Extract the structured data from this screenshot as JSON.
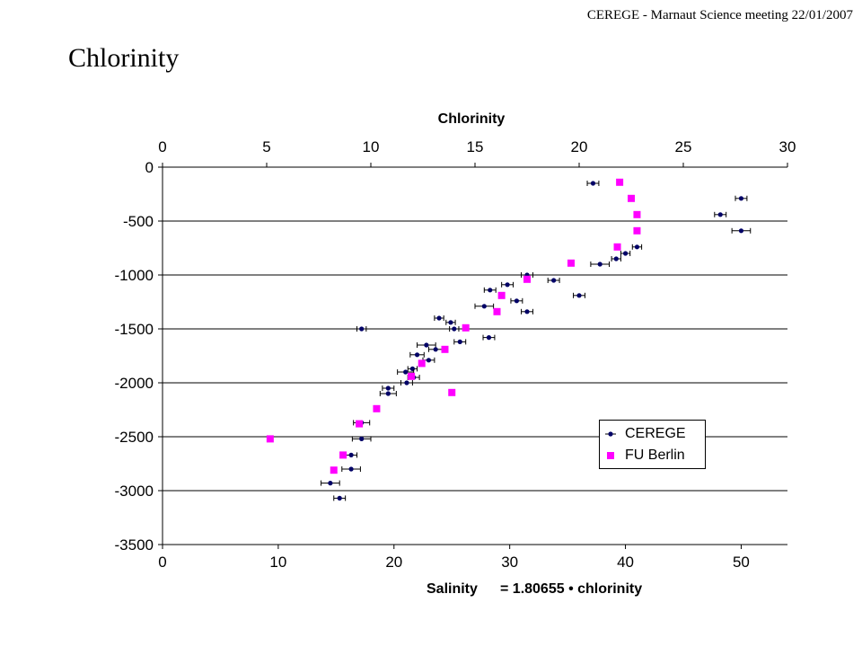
{
  "header": {
    "meeting": "CEREGE - Marnaut Science meeting 22/01/2007"
  },
  "slide": {
    "title": "Chlorinity"
  },
  "chart_data": {
    "type": "scatter",
    "title": "Chlorinity",
    "x2label": "Chlorinity",
    "xlabel": "Salinity",
    "xlabel_formula": "= 1.80655 • chlorinity",
    "ylabel": "",
    "xlim": [
      0,
      54
    ],
    "ylim": [
      -3500,
      0
    ],
    "x_ticks": [
      0,
      10,
      20,
      30,
      40,
      50
    ],
    "x_tick_labels": [
      "0",
      "10",
      "20",
      "30",
      "40",
      "50"
    ],
    "x2lim": [
      0,
      30
    ],
    "x2_ticks": [
      0,
      5,
      10,
      15,
      20,
      25,
      30
    ],
    "x2_tick_labels": [
      "0",
      "5",
      "10",
      "15",
      "20",
      "25",
      "30"
    ],
    "y_ticks": [
      0,
      -500,
      -1000,
      -1500,
      -2000,
      -2500,
      -3000,
      -3500
    ],
    "y_tick_labels": [
      "0",
      "-500",
      "-1000",
      "-1500",
      "-2000",
      "-2500",
      "-3000",
      "-3500"
    ],
    "grid": "horizontal",
    "legend_position": "bottom-right",
    "series": [
      {
        "name": "CEREGE",
        "color": "#000066",
        "marker": "dot-with-horizontal-error-bar",
        "points": [
          {
            "x": 37.2,
            "y": -150,
            "err": 0.5
          },
          {
            "x": 50.0,
            "y": -290,
            "err": 0.5
          },
          {
            "x": 48.2,
            "y": -440,
            "err": 0.5
          },
          {
            "x": 50.0,
            "y": -590,
            "err": 0.8
          },
          {
            "x": 41.0,
            "y": -740,
            "err": 0.4
          },
          {
            "x": 40.0,
            "y": -800,
            "err": 0.4
          },
          {
            "x": 39.2,
            "y": -850,
            "err": 0.4
          },
          {
            "x": 37.8,
            "y": -900,
            "err": 0.8
          },
          {
            "x": 31.5,
            "y": -1000,
            "err": 0.5
          },
          {
            "x": 33.8,
            "y": -1050,
            "err": 0.5
          },
          {
            "x": 29.8,
            "y": -1090,
            "err": 0.5
          },
          {
            "x": 28.3,
            "y": -1140,
            "err": 0.5
          },
          {
            "x": 36.0,
            "y": -1190,
            "err": 0.5
          },
          {
            "x": 30.6,
            "y": -1240,
            "err": 0.5
          },
          {
            "x": 27.8,
            "y": -1290,
            "err": 0.8
          },
          {
            "x": 31.5,
            "y": -1340,
            "err": 0.5
          },
          {
            "x": 23.9,
            "y": -1400,
            "err": 0.4
          },
          {
            "x": 24.9,
            "y": -1440,
            "err": 0.4
          },
          {
            "x": 25.2,
            "y": -1500,
            "err": 0.4
          },
          {
            "x": 17.2,
            "y": -1500,
            "err": 0.4
          },
          {
            "x": 28.2,
            "y": -1580,
            "err": 0.5
          },
          {
            "x": 25.7,
            "y": -1620,
            "err": 0.5
          },
          {
            "x": 22.8,
            "y": -1650,
            "err": 0.8
          },
          {
            "x": 23.6,
            "y": -1690,
            "err": 0.6
          },
          {
            "x": 22.0,
            "y": -1740,
            "err": 0.6
          },
          {
            "x": 23.0,
            "y": -1790,
            "err": 0.5
          },
          {
            "x": 21.6,
            "y": -1870,
            "err": 0.4
          },
          {
            "x": 21.0,
            "y": -1900,
            "err": 0.7
          },
          {
            "x": 21.7,
            "y": -1950,
            "err": 0.5
          },
          {
            "x": 21.1,
            "y": -2000,
            "err": 0.5
          },
          {
            "x": 19.5,
            "y": -2050,
            "err": 0.5
          },
          {
            "x": 19.5,
            "y": -2100,
            "err": 0.7
          },
          {
            "x": 17.2,
            "y": -2370,
            "err": 0.7
          },
          {
            "x": 17.2,
            "y": -2520,
            "err": 0.8
          },
          {
            "x": 16.3,
            "y": -2670,
            "err": 0.5
          },
          {
            "x": 16.3,
            "y": -2800,
            "err": 0.8
          },
          {
            "x": 14.5,
            "y": -2930,
            "err": 0.8
          },
          {
            "x": 15.3,
            "y": -3070,
            "err": 0.5
          }
        ]
      },
      {
        "name": "FU Berlin",
        "color": "#FF00FF",
        "marker": "square",
        "points": [
          {
            "x": 39.5,
            "y": -140
          },
          {
            "x": 40.5,
            "y": -290
          },
          {
            "x": 41.0,
            "y": -440
          },
          {
            "x": 41.0,
            "y": -590
          },
          {
            "x": 39.3,
            "y": -740
          },
          {
            "x": 35.3,
            "y": -890
          },
          {
            "x": 31.5,
            "y": -1040
          },
          {
            "x": 29.3,
            "y": -1190
          },
          {
            "x": 28.9,
            "y": -1340
          },
          {
            "x": 26.2,
            "y": -1490
          },
          {
            "x": 24.4,
            "y": -1690
          },
          {
            "x": 22.4,
            "y": -1820
          },
          {
            "x": 21.5,
            "y": -1940
          },
          {
            "x": 25.0,
            "y": -2090
          },
          {
            "x": 18.5,
            "y": -2240
          },
          {
            "x": 17.0,
            "y": -2380
          },
          {
            "x": 9.3,
            "y": -2520
          },
          {
            "x": 15.6,
            "y": -2670
          },
          {
            "x": 14.8,
            "y": -2810
          }
        ]
      }
    ]
  }
}
